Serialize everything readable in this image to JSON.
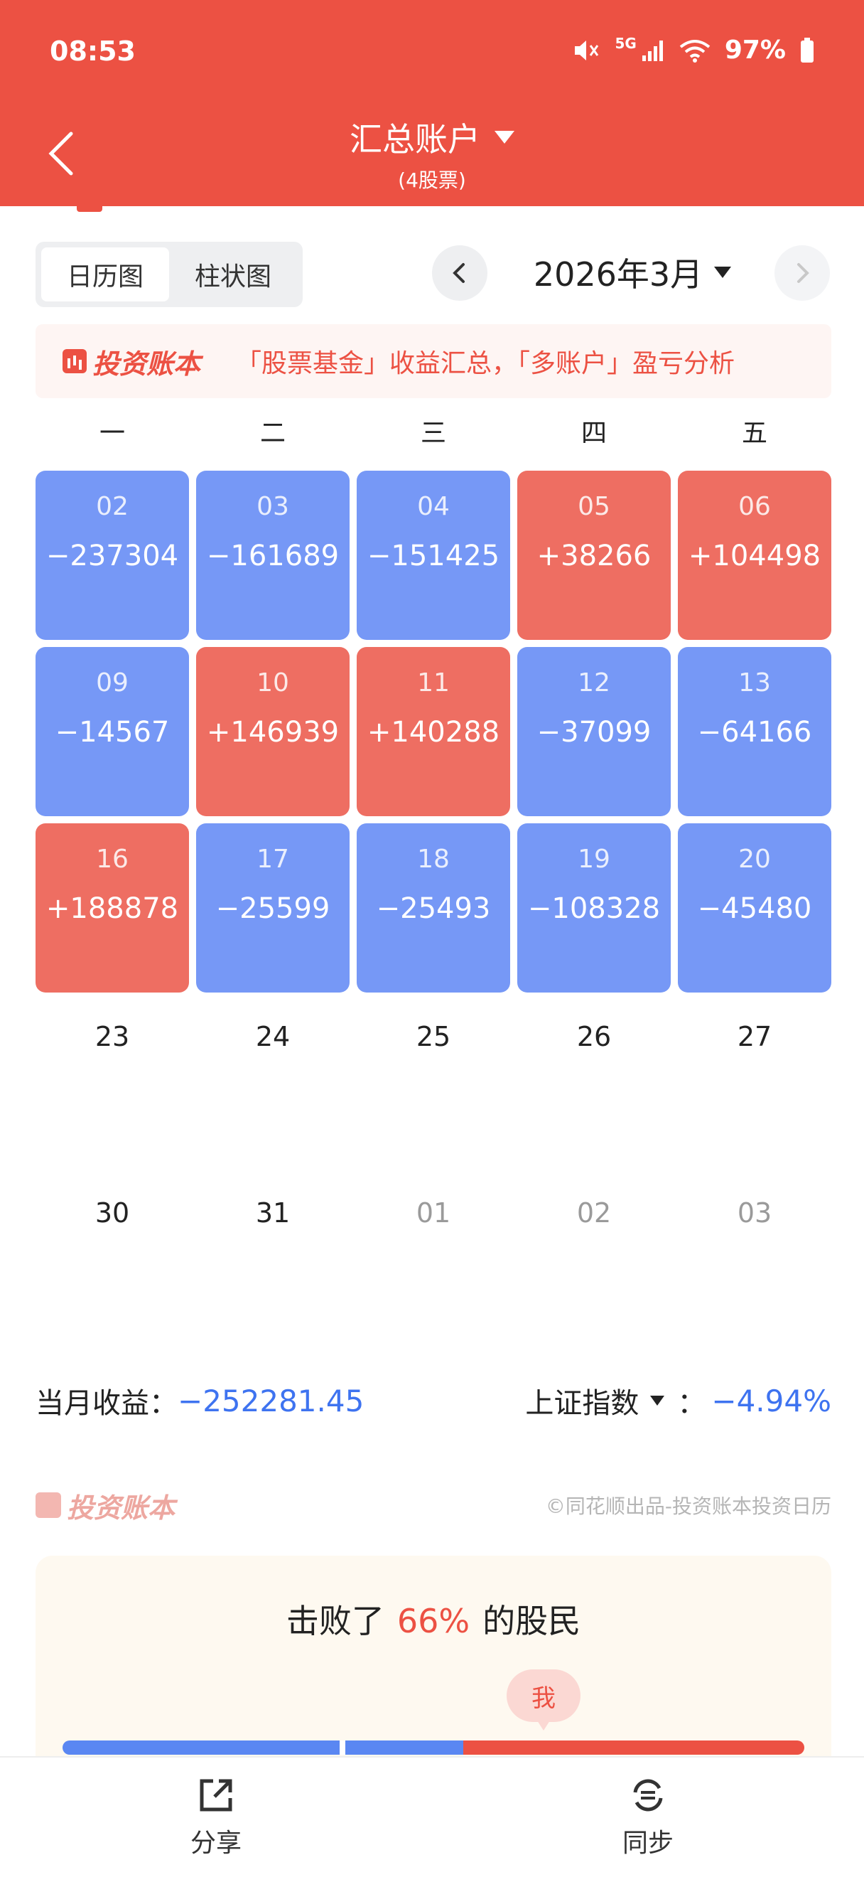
{
  "status_bar": {
    "time": "08:53",
    "network": "5G",
    "battery": "97%"
  },
  "header": {
    "title": "汇总账户",
    "subtitle": "(4股票)"
  },
  "view_tabs": [
    {
      "label": "日历图",
      "active": true
    },
    {
      "label": "柱状图",
      "active": false
    }
  ],
  "month_selector": {
    "label": "2026年3月"
  },
  "banner": {
    "logo_text": "投资账本",
    "text": "「股票基金」收益汇总，「多账户」盈亏分析"
  },
  "weekdays": [
    "一",
    "二",
    "三",
    "四",
    "五"
  ],
  "calendar": {
    "cells": [
      {
        "day": "02",
        "pnl": "−237304",
        "kind": "loss"
      },
      {
        "day": "03",
        "pnl": "−161689",
        "kind": "loss"
      },
      {
        "day": "04",
        "pnl": "−151425",
        "kind": "loss"
      },
      {
        "day": "05",
        "pnl": "+38266",
        "kind": "gain"
      },
      {
        "day": "06",
        "pnl": "+104498",
        "kind": "gain"
      },
      {
        "day": "09",
        "pnl": "−14567",
        "kind": "loss"
      },
      {
        "day": "10",
        "pnl": "+146939",
        "kind": "gain"
      },
      {
        "day": "11",
        "pnl": "+140288",
        "kind": "gain"
      },
      {
        "day": "12",
        "pnl": "−37099",
        "kind": "loss"
      },
      {
        "day": "13",
        "pnl": "−64166",
        "kind": "loss"
      },
      {
        "day": "16",
        "pnl": "+188878",
        "kind": "gain"
      },
      {
        "day": "17",
        "pnl": "−25599",
        "kind": "loss"
      },
      {
        "day": "18",
        "pnl": "−25493",
        "kind": "loss"
      },
      {
        "day": "19",
        "pnl": "−108328",
        "kind": "loss"
      },
      {
        "day": "20",
        "pnl": "−45480",
        "kind": "loss"
      },
      {
        "day": "23",
        "pnl": "",
        "kind": "empty"
      },
      {
        "day": "24",
        "pnl": "",
        "kind": "empty"
      },
      {
        "day": "25",
        "pnl": "",
        "kind": "empty"
      },
      {
        "day": "26",
        "pnl": "",
        "kind": "empty"
      },
      {
        "day": "27",
        "pnl": "",
        "kind": "empty"
      },
      {
        "day": "30",
        "pnl": "",
        "kind": "empty"
      },
      {
        "day": "31",
        "pnl": "",
        "kind": "empty"
      },
      {
        "day": "01",
        "pnl": "",
        "kind": "other"
      },
      {
        "day": "02",
        "pnl": "",
        "kind": "other"
      },
      {
        "day": "03",
        "pnl": "",
        "kind": "other"
      }
    ]
  },
  "summary": {
    "month_label": "当月收益：",
    "month_value": "−252281.45",
    "index_label": "上证指数",
    "index_sep": "：",
    "index_value": "−4.94%"
  },
  "footer_brand": {
    "logo_text": "投资账本",
    "copyright": "©同花顺出品-投资账本投资日历"
  },
  "rank": {
    "prefix": "击败了",
    "percent": "66%",
    "suffix": "的股民",
    "me_label": "我",
    "blue_fraction": 0.66,
    "mid_blue_fraction": 0.16
  },
  "bottom_bar": {
    "share_label": "分享",
    "sync_label": "同步"
  },
  "colors": {
    "brand": "#EC5143",
    "loss": "#7698F6",
    "gain": "#EE6E62",
    "negative_text": "#3E73F0"
  }
}
